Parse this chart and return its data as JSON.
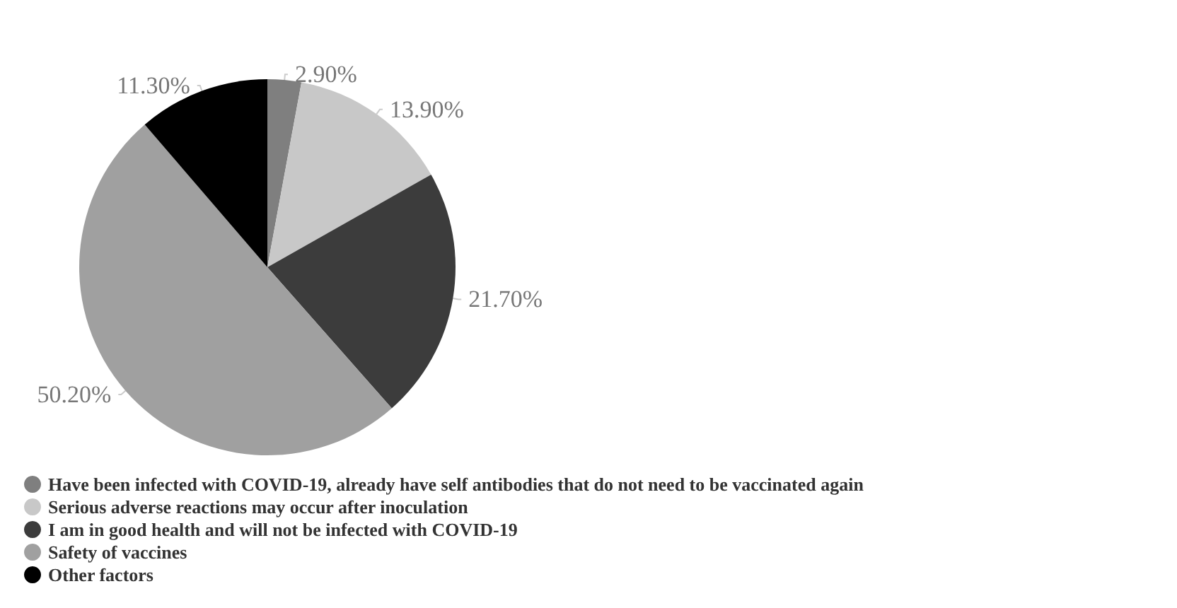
{
  "chart_data": {
    "type": "pie",
    "categories": [
      "Have been infected with COVID-19, already have self antibodies that do not need to be vaccinated again",
      "Serious adverse reactions may occur after inoculation",
      "I am in good health and will not be infected with COVID-19",
      "Safety of vaccines",
      "Other factors"
    ],
    "values": [
      2.9,
      13.9,
      21.7,
      50.2,
      11.3
    ],
    "value_labels": [
      "2.90%",
      "13.90%",
      "21.70%",
      "50.20%",
      "11.30%"
    ],
    "colors": [
      "#7f7f7f",
      "#c8c8c8",
      "#3c3c3c",
      "#a0a0a0",
      "#000000"
    ],
    "legend": "bottom"
  }
}
